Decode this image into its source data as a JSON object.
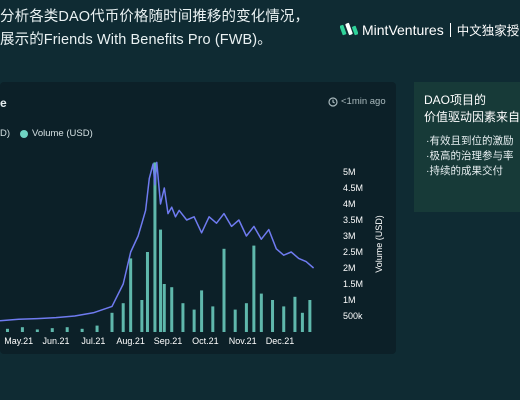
{
  "header": {
    "line1": "分析各类DAO代币价格随时间推移的变化情况，",
    "line2": "展示的Friends With Benefits Pro (FWB)。"
  },
  "brand": {
    "name": "MintVentures",
    "tag": "中文独家授"
  },
  "chart_panel": {
    "title": "e",
    "updated": "<1min ago"
  },
  "side_panel": {
    "title_line1": "DAO项目的",
    "title_line2": "价值驱动因素来自",
    "items": [
      "·有效且到位的激励",
      "·极高的治理参与率",
      "·持续的成果交付"
    ]
  },
  "colors": {
    "background": "#0f2b33",
    "panel": "#0c2028",
    "price_line": "#6f7bf0",
    "volume_bar": "#6fd3c3",
    "side_panel": "#173a38"
  },
  "chart_data": {
    "type": "line",
    "legend": [
      {
        "label": "D)",
        "color": "#6f7bf0"
      },
      {
        "label": "Volume (USD)",
        "color": "#6fd3c3"
      }
    ],
    "x_tick_labels": [
      "May.21",
      "Jun.21",
      "Jul.21",
      "Aug.21",
      "Sep.21",
      "Oct.21",
      "Nov.21",
      "Dec.21"
    ],
    "y_right_tick_labels": [
      "500k",
      "1M",
      "1.5M",
      "2M",
      "2.5M",
      "3M",
      "3.5M",
      "4M",
      "4.5M",
      "5M"
    ],
    "y_right_label": "Volume (USD)",
    "y_right_range": [
      0,
      5500000
    ],
    "x_range": [
      0,
      9
    ],
    "price_series": {
      "x": [
        0.0,
        0.5,
        1.0,
        1.5,
        2.0,
        2.5,
        3.0,
        3.3,
        3.5,
        3.7,
        3.8,
        3.9,
        4.0,
        4.1,
        4.15,
        4.2,
        4.3,
        4.4,
        4.5,
        4.6,
        4.7,
        4.8,
        5.0,
        5.2,
        5.4,
        5.6,
        5.8,
        6.0,
        6.2,
        6.4,
        6.6,
        6.8,
        7.0,
        7.2,
        7.4,
        7.6,
        7.8,
        8.0,
        8.2,
        8.4
      ],
      "y": [
        350000,
        400000,
        420000,
        450000,
        500000,
        600000,
        800000,
        1500000,
        2500000,
        3000000,
        3400000,
        3800000,
        4800000,
        5250000,
        4600000,
        5300000,
        4000000,
        4500000,
        3700000,
        3900000,
        3600000,
        3800000,
        3500000,
        3600000,
        3100000,
        3600000,
        3400000,
        3700000,
        3300000,
        3500000,
        3000000,
        3300000,
        2900000,
        3200000,
        2600000,
        2400000,
        2500000,
        2300000,
        2200000,
        2000000
      ]
    },
    "volume_series": {
      "x": [
        0.2,
        0.6,
        1.0,
        1.4,
        1.8,
        2.2,
        2.6,
        3.0,
        3.3,
        3.5,
        3.8,
        3.95,
        4.15,
        4.3,
        4.4,
        4.6,
        4.9,
        5.2,
        5.4,
        5.7,
        6.0,
        6.3,
        6.6,
        6.8,
        7.0,
        7.3,
        7.6,
        7.9,
        8.1,
        8.3
      ],
      "y": [
        100000,
        150000,
        80000,
        120000,
        150000,
        100000,
        200000,
        600000,
        900000,
        2300000,
        1000000,
        2500000,
        5300000,
        3200000,
        1500000,
        1400000,
        900000,
        700000,
        1300000,
        800000,
        2600000,
        700000,
        900000,
        2700000,
        1200000,
        1000000,
        800000,
        1100000,
        600000,
        1000000
      ]
    }
  }
}
